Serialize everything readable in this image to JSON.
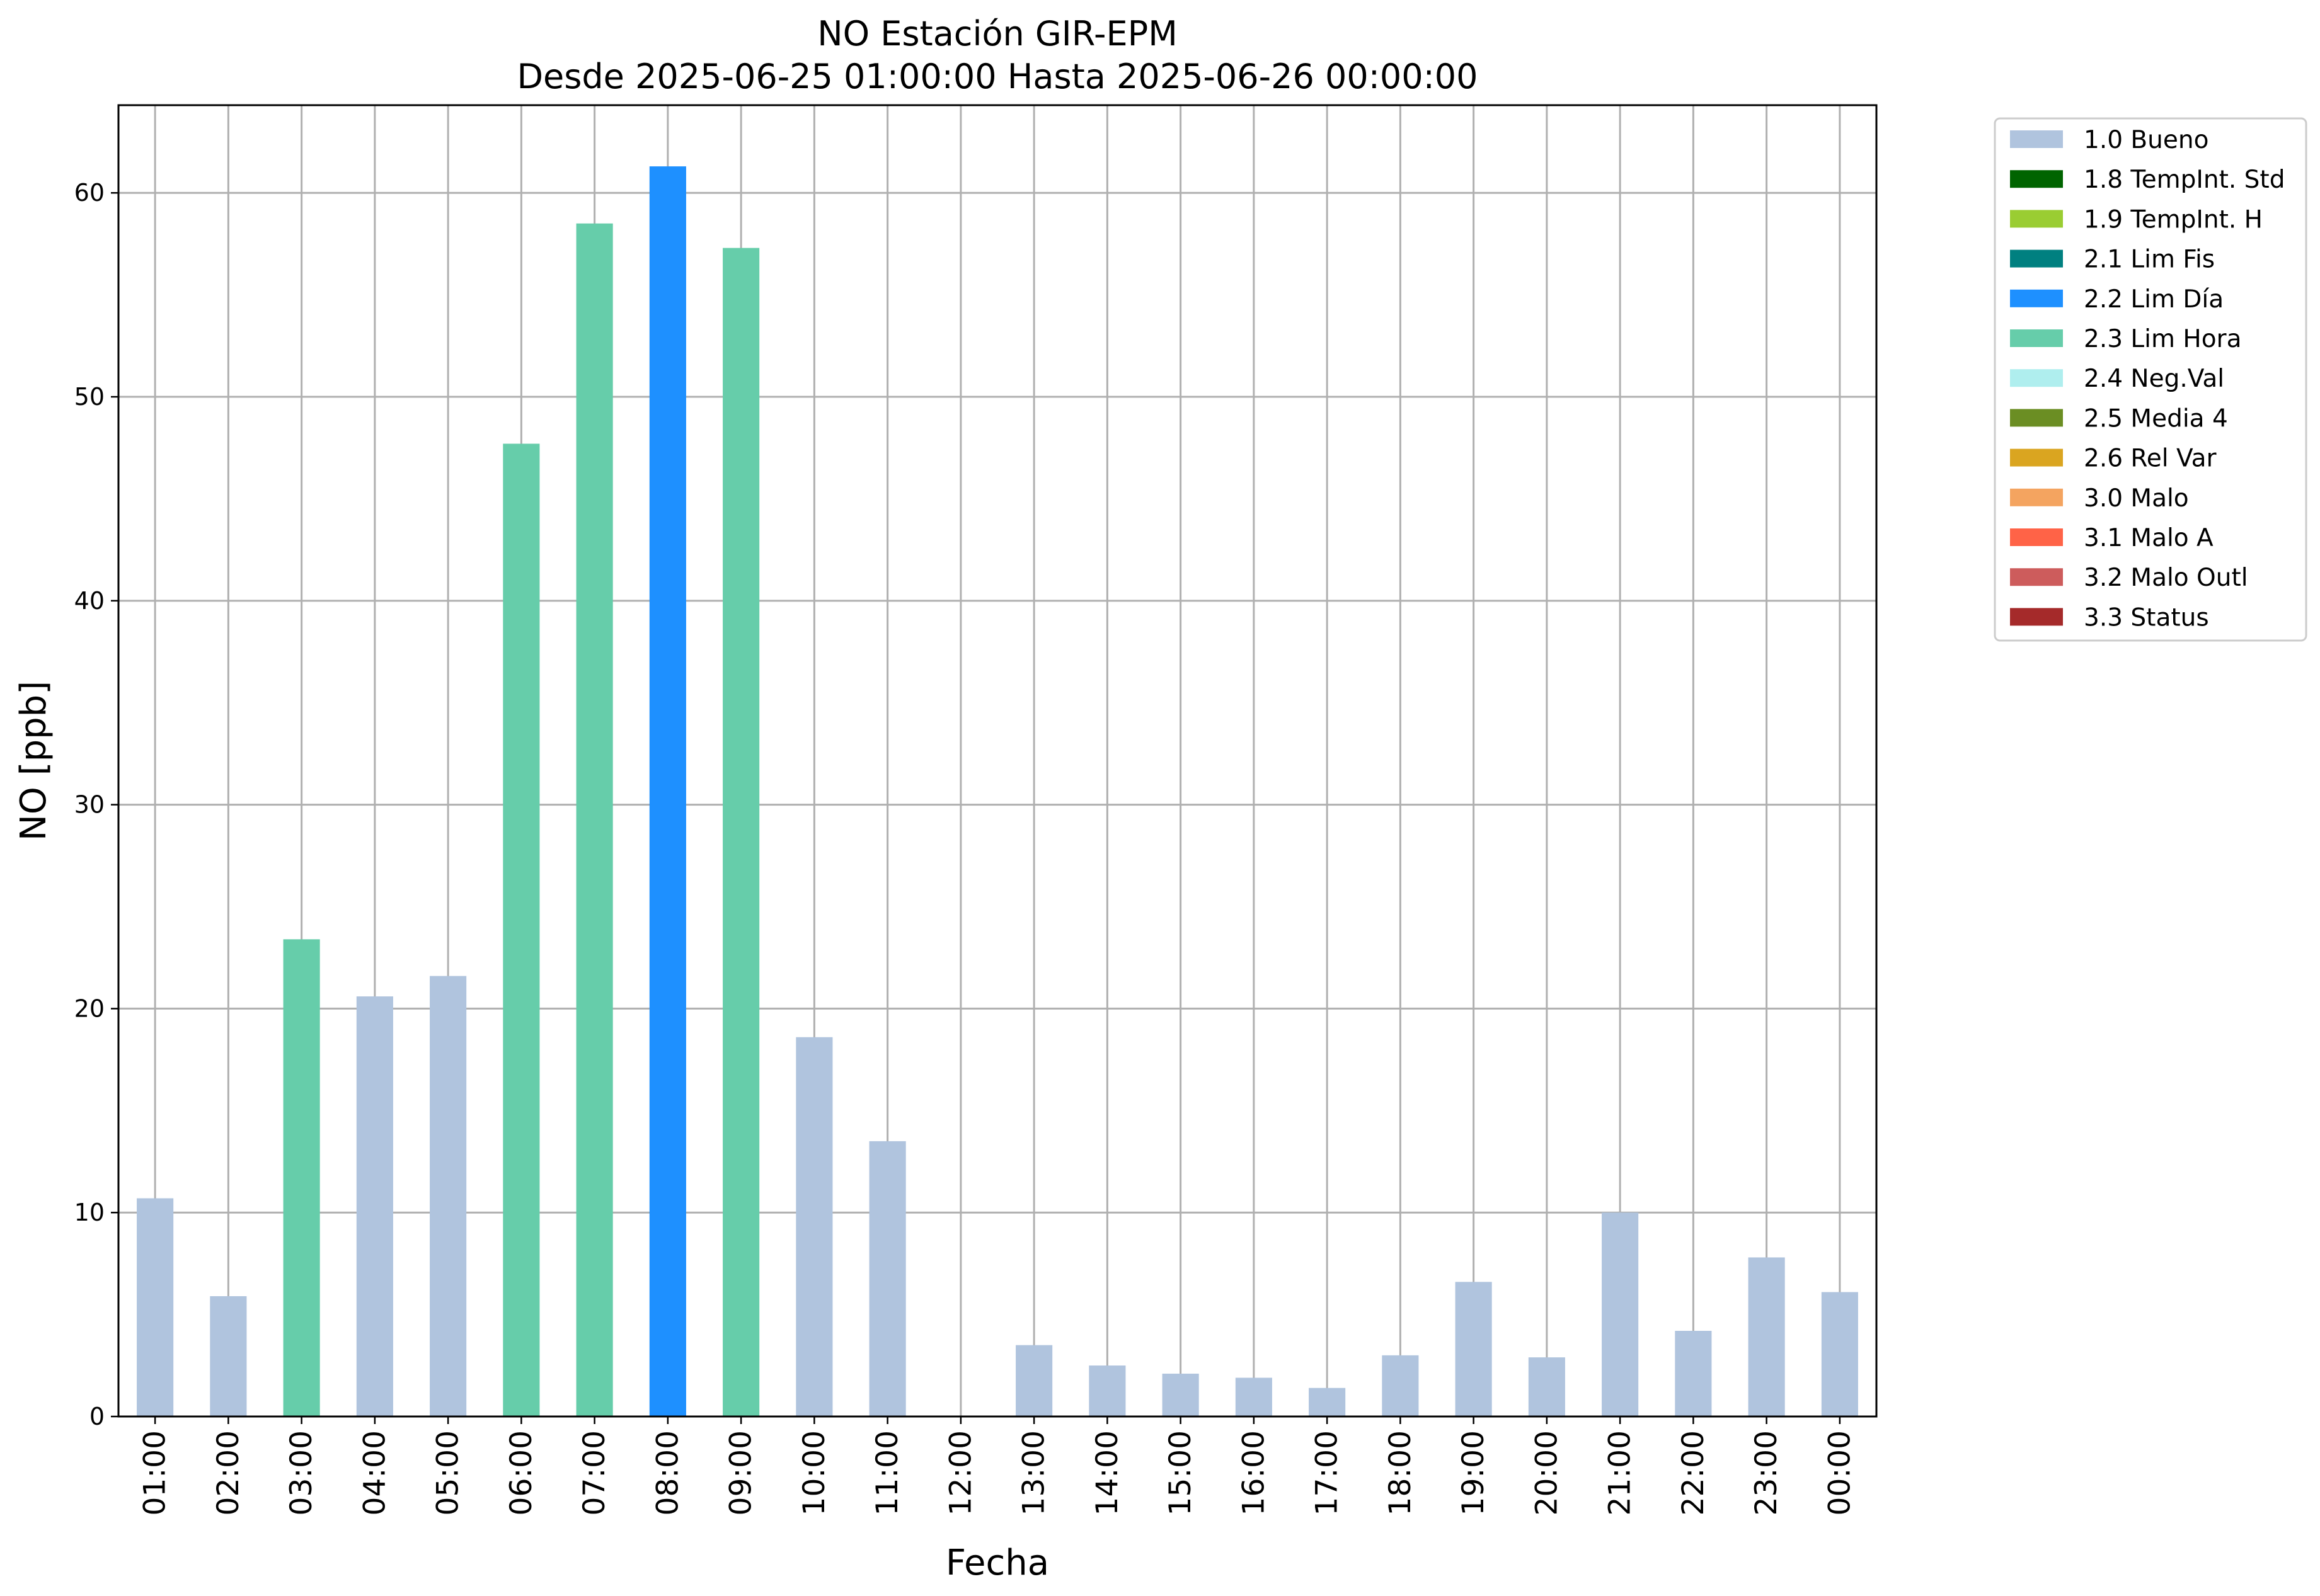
{
  "chart_data": {
    "type": "bar",
    "title": "NO Estación GIR-EPM",
    "subtitle": "Desde 2025-06-25 01:00:00 Hasta 2025-06-26 00:00:00",
    "xlabel": "Fecha",
    "ylabel": "NO [ppb]",
    "ylim": [
      0,
      64.3
    ],
    "yticks": [
      0,
      10,
      20,
      30,
      40,
      50,
      60
    ],
    "grid": true,
    "legend_position": "outside-top-right",
    "categories": [
      "01:00",
      "02:00",
      "03:00",
      "04:00",
      "05:00",
      "06:00",
      "07:00",
      "08:00",
      "09:00",
      "10:00",
      "11:00",
      "12:00",
      "13:00",
      "14:00",
      "15:00",
      "16:00",
      "17:00",
      "18:00",
      "19:00",
      "20:00",
      "21:00",
      "22:00",
      "23:00",
      "00:00"
    ],
    "values": [
      10.7,
      5.9,
      23.4,
      20.6,
      21.6,
      47.7,
      58.5,
      61.3,
      57.3,
      18.6,
      13.5,
      null,
      3.5,
      2.5,
      2.1,
      1.9,
      1.4,
      3.0,
      6.6,
      2.9,
      10.0,
      4.2,
      7.8,
      6.1
    ],
    "flags": [
      "1.0 Bueno",
      "1.0 Bueno",
      "2.3 Lim Hora",
      "1.0 Bueno",
      "1.0 Bueno",
      "2.3 Lim Hora",
      "2.3 Lim Hora",
      "2.2 Lim Día",
      "2.3 Lim Hora",
      "1.0 Bueno",
      "1.0 Bueno",
      null,
      "1.0 Bueno",
      "1.0 Bueno",
      "1.0 Bueno",
      "1.0 Bueno",
      "1.0 Bueno",
      "1.0 Bueno",
      "1.0 Bueno",
      "1.0 Bueno",
      "1.0 Bueno",
      "1.0 Bueno",
      "1.0 Bueno",
      "1.0 Bueno"
    ],
    "legend": [
      {
        "name": "1.0 Bueno",
        "color": "#b0c4de"
      },
      {
        "name": "1.8 TempInt. Std",
        "color": "#006400"
      },
      {
        "name": "1.9 TempInt. H",
        "color": "#9acd32"
      },
      {
        "name": "2.1 Lim Fis",
        "color": "#008080"
      },
      {
        "name": "2.2 Lim Día",
        "color": "#1e90ff"
      },
      {
        "name": "2.3 Lim Hora",
        "color": "#66cdaa"
      },
      {
        "name": "2.4 Neg.Val",
        "color": "#afeeee"
      },
      {
        "name": "2.5 Media 4",
        "color": "#6b8e23"
      },
      {
        "name": "2.6 Rel Var",
        "color": "#daa520"
      },
      {
        "name": "3.0 Malo",
        "color": "#f4a460"
      },
      {
        "name": "3.1 Malo A",
        "color": "#ff6347"
      },
      {
        "name": "3.2 Malo Outl",
        "color": "#cd5c5c"
      },
      {
        "name": "3.3 Status",
        "color": "#a52a2a"
      }
    ]
  }
}
